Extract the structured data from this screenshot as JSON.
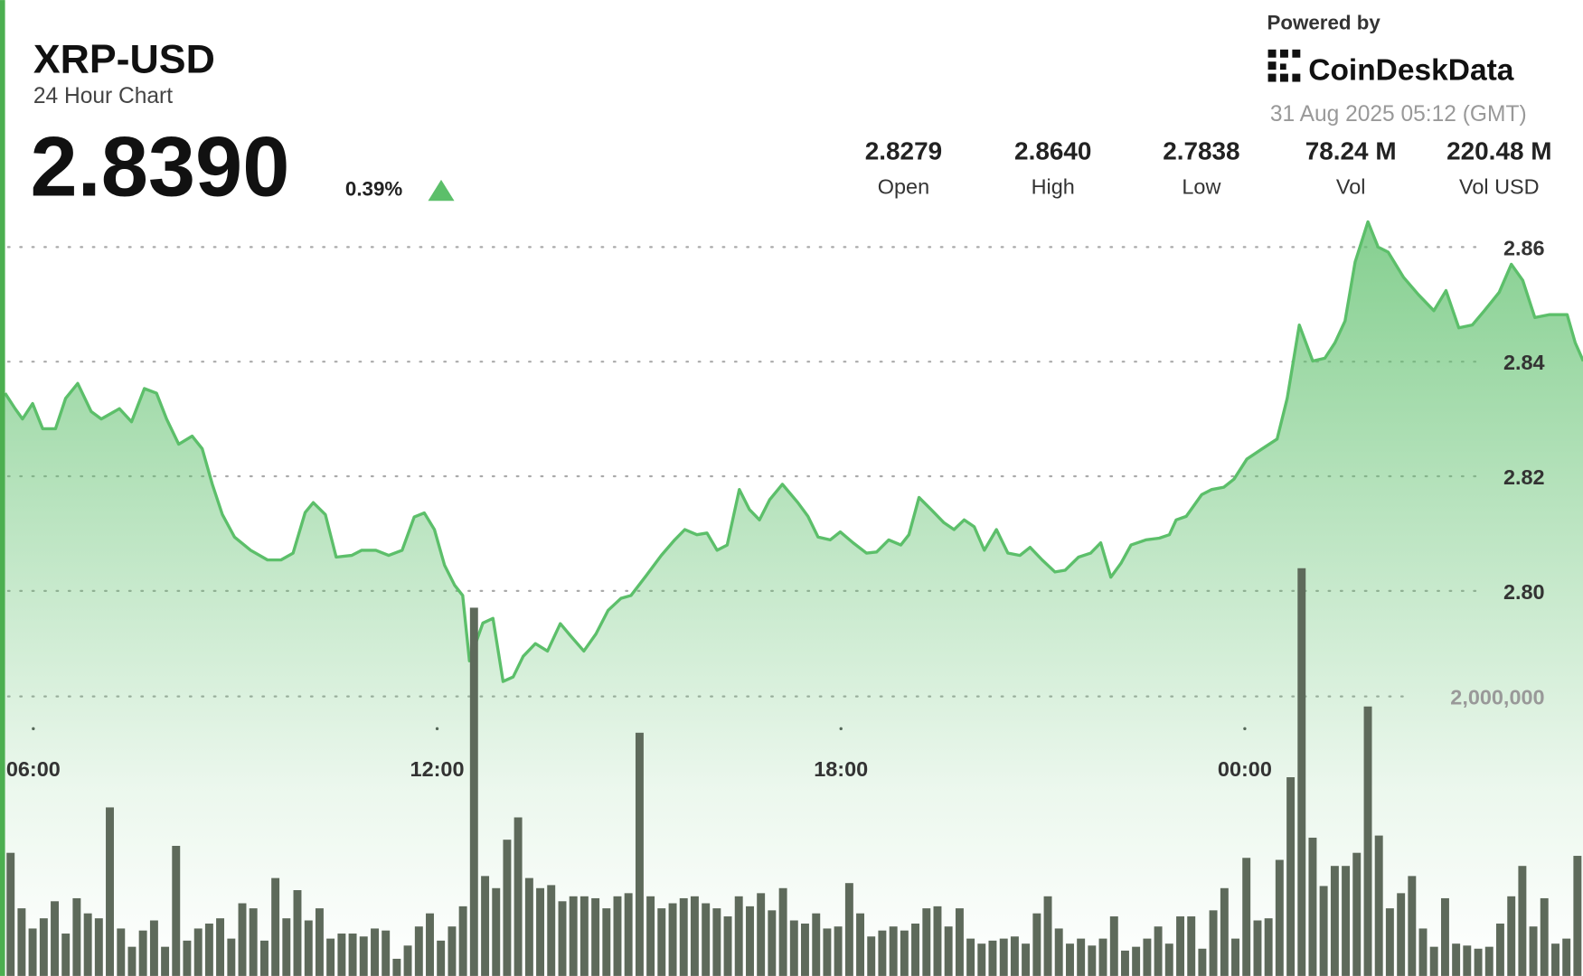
{
  "header": {
    "title": "XRP-USD",
    "subtitle": "24 Hour Chart",
    "price": "2.8390",
    "change": "0.39%",
    "powered_by": "Powered by",
    "brand": "CoinDeskData",
    "timestamp": "31 Aug 2025 05:12 (GMT)",
    "stats": [
      {
        "value": "2.8279",
        "label": "Open"
      },
      {
        "value": "2.8640",
        "label": "High"
      },
      {
        "value": "2.7838",
        "label": "Low"
      },
      {
        "value": "78.24 M",
        "label": "Vol"
      },
      {
        "value": "220.48 M",
        "label": "Vol USD"
      }
    ]
  },
  "chart_data": [
    {
      "type": "area",
      "color": "#5cbf6a",
      "x": [
        5.58,
        5.73,
        5.84,
        5.99,
        6.14,
        6.33,
        6.48,
        6.66,
        6.86,
        7.01,
        7.28,
        7.46,
        7.65,
        7.83,
        7.98,
        8.16,
        8.36,
        8.51,
        8.66,
        8.81,
        8.99,
        9.23,
        9.48,
        9.68,
        9.86,
        10.04,
        10.16,
        10.34,
        10.5,
        10.73,
        10.88,
        11.09,
        11.28,
        11.48,
        11.66,
        11.81,
        11.96,
        12.11,
        12.26,
        12.38,
        12.48,
        12.68,
        12.83,
        12.98,
        13.13,
        13.28,
        13.46,
        13.64,
        13.83,
        13.98,
        14.18,
        14.36,
        14.54,
        14.73,
        14.88,
        15.11,
        15.33,
        15.53,
        15.68,
        15.86,
        16.01,
        16.16,
        16.31,
        16.49,
        16.64,
        16.79,
        16.94,
        17.13,
        17.36,
        17.51,
        17.66,
        17.84,
        17.99,
        18.18,
        18.38,
        18.53,
        18.71,
        18.89,
        19.01,
        19.16,
        19.34,
        19.53,
        19.68,
        19.83,
        19.98,
        20.13,
        20.31,
        20.48,
        20.66,
        20.81,
        20.99,
        21.18,
        21.33,
        21.53,
        21.71,
        21.86,
        22.01,
        22.16,
        22.31,
        22.53,
        22.73,
        22.88,
        22.98,
        23.13,
        23.36,
        23.51,
        23.69,
        23.84,
        24.03,
        24.26,
        24.48,
        24.63,
        24.81,
        25.01,
        25.19,
        25.34,
        25.49,
        25.64,
        25.83,
        25.98,
        26.13,
        26.36,
        26.58,
        26.81,
        26.99,
        27.18,
        27.38,
        27.56,
        27.78,
        27.96,
        28.13,
        28.31,
        28.53,
        28.79,
        28.91,
        29.03
      ],
      "values": [
        2.8345,
        2.8318,
        2.83,
        2.8327,
        2.8283,
        2.8283,
        2.8336,
        2.8362,
        2.8313,
        2.83,
        2.8318,
        2.8295,
        2.8353,
        2.8345,
        2.83,
        2.8256,
        2.827,
        2.8248,
        2.8186,
        2.8133,
        2.8094,
        2.8071,
        2.8054,
        2.8054,
        2.8066,
        2.8137,
        2.8154,
        2.8133,
        2.8059,
        2.8062,
        2.8071,
        2.8071,
        2.8062,
        2.8071,
        2.8129,
        2.8136,
        2.8107,
        2.8045,
        2.801,
        2.7992,
        2.7878,
        2.7944,
        2.7952,
        2.7842,
        2.785,
        2.7886,
        2.7908,
        2.7895,
        2.7943,
        2.7922,
        2.7895,
        2.7925,
        2.7966,
        2.7987,
        2.7992,
        2.8027,
        2.8062,
        2.8089,
        2.8107,
        2.8098,
        2.8101,
        2.8071,
        2.808,
        2.8177,
        2.8142,
        2.8124,
        2.8159,
        2.8186,
        2.8154,
        2.813,
        2.8094,
        2.8089,
        2.8103,
        2.8084,
        2.8066,
        2.8068,
        2.8089,
        2.808,
        2.8098,
        2.8163,
        2.8142,
        2.8119,
        2.8107,
        2.8124,
        2.8112,
        2.8071,
        2.8107,
        2.8066,
        2.8062,
        2.8076,
        2.8054,
        2.8033,
        2.8036,
        2.8059,
        2.8066,
        2.8084,
        2.8024,
        2.8048,
        2.808,
        2.8089,
        2.8092,
        2.8098,
        2.8124,
        2.813,
        2.8168,
        2.8177,
        2.8181,
        2.8195,
        2.823,
        2.8248,
        2.8265,
        2.8336,
        2.8464,
        2.8401,
        2.8406,
        2.8433,
        2.8471,
        2.8574,
        2.8644,
        2.86,
        2.8591,
        2.8547,
        2.8517,
        2.8489,
        2.8524,
        2.8459,
        2.8464,
        2.8489,
        2.8521,
        2.857,
        2.8542,
        2.8477,
        2.8482,
        2.8482,
        2.8433,
        2.8401
      ],
      "xlim": [
        5.505,
        29.025
      ],
      "xticks": [
        {
          "value": 6,
          "label": "06:00"
        },
        {
          "value": 12,
          "label": "12:00"
        },
        {
          "value": 18,
          "label": "18:00"
        },
        {
          "value": 24,
          "label": "00:00"
        }
      ],
      "ylim": [
        2.733,
        2.864
      ],
      "yticks": [
        {
          "value": 2.8,
          "label": "2.80"
        },
        2.82,
        2.84,
        2.86
      ],
      "grid": true
    },
    {
      "type": "bar",
      "color": "#5e6a5b",
      "values": [
        881000,
        484000,
        339000,
        412000,
        534000,
        303000,
        556000,
        448000,
        412000,
        1206000,
        339000,
        209000,
        325000,
        397000,
        209000,
        931000,
        253000,
        339000,
        375000,
        412000,
        267000,
        520000,
        484000,
        253000,
        700000,
        412000,
        614000,
        397000,
        484000,
        267000,
        303000,
        303000,
        282000,
        339000,
        325000,
        123000,
        217000,
        354000,
        448000,
        253000,
        354000,
        498000,
        2635000,
        715000,
        628000,
        975000,
        1134000,
        700000,
        628000,
        650000,
        534000,
        570000,
        570000,
        556000,
        484000,
        570000,
        592000,
        1740000,
        570000,
        484000,
        520000,
        556000,
        570000,
        520000,
        484000,
        426000,
        570000,
        498000,
        592000,
        469000,
        628000,
        397000,
        375000,
        448000,
        339000,
        354000,
        664000,
        448000,
        282000,
        325000,
        354000,
        325000,
        375000,
        484000,
        498000,
        354000,
        484000,
        267000,
        231000,
        253000,
        267000,
        282000,
        231000,
        448000,
        570000,
        339000,
        231000,
        267000,
        217000,
        267000,
        426000,
        181000,
        209000,
        267000,
        354000,
        231000,
        426000,
        426000,
        195000,
        469000,
        628000,
        267000,
        845000,
        397000,
        412000,
        830000,
        1422000,
        2917000,
        989000,
        643000,
        787000,
        787000,
        881000,
        1928000,
        1004000,
        484000,
        592000,
        715000,
        339000,
        209000,
        556000,
        231000,
        217000,
        195000,
        209000,
        375000,
        570000,
        787000,
        354000,
        556000,
        231000,
        267000,
        859000
      ],
      "ylim": [
        0,
        5000000
      ],
      "yticks": [
        {
          "value": 2000000,
          "label": "2,000,000"
        }
      ],
      "grid": true
    }
  ]
}
